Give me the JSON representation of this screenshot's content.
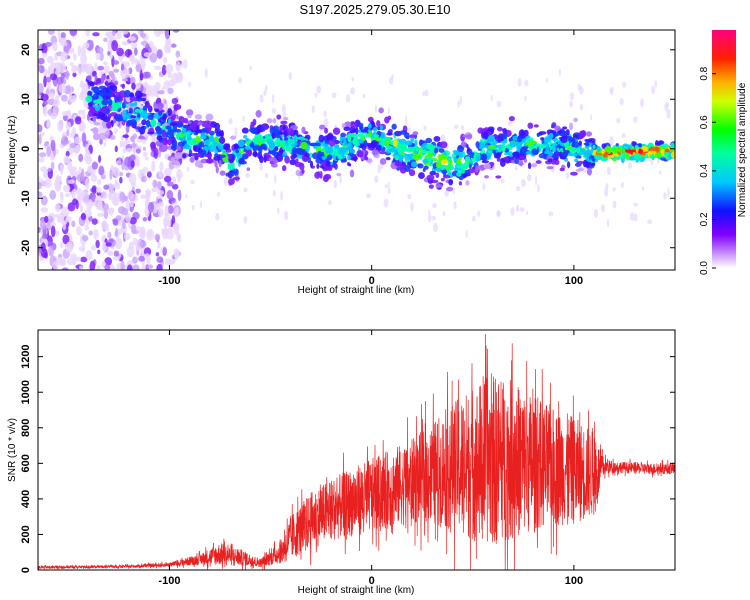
{
  "figure_title": "S197.2025.279.05.30.E10",
  "chart_data": [
    {
      "type": "heatmap",
      "xlabel": "Height of straight line (km)",
      "ylabel": "Frequency (Hz)",
      "xlim": [
        -165,
        150
      ],
      "ylim": [
        -24.5,
        24
      ],
      "xticks": [
        -100,
        0,
        100
      ],
      "xtick_labels": [
        "-100",
        "0",
        "100"
      ],
      "yticks": [
        -20,
        -10,
        0,
        10,
        20
      ],
      "ytick_labels": [
        "-20",
        "-10",
        "0",
        "10",
        "20"
      ],
      "colorbar": {
        "label": "Normalized spectral amplitude",
        "range": [
          0,
          0.98
        ],
        "ticks": [
          0.0,
          0.2,
          0.4,
          0.6,
          0.8
        ],
        "tick_labels": [
          "0.0",
          "0.2",
          "0.4",
          "0.6",
          "0.8"
        ],
        "colormap": [
          "#ffffff",
          "#a000ff",
          "#2000ff",
          "#00e0ff",
          "#00ff00",
          "#ffff00",
          "#ff8000",
          "#ff0000",
          "#ff0080"
        ]
      },
      "ridge": {
        "x": [
          -135,
          -120,
          -100,
          -90,
          -75,
          -70,
          -60,
          -40,
          -20,
          0,
          20,
          30,
          45,
          55,
          75,
          90,
          110,
          130,
          150
        ],
        "frequency": [
          10,
          8,
          4,
          2,
          1,
          -4,
          2,
          1,
          -1,
          3,
          -1,
          -2,
          -3,
          0,
          1,
          1,
          -1,
          -0.5,
          -0.5
        ]
      },
      "grid": false
    },
    {
      "type": "line",
      "xlabel": "Height of straight line (km)",
      "ylabel": "SNR (10 * v/v)",
      "xlim": [
        -165,
        150
      ],
      "ylim": [
        0,
        1350
      ],
      "xticks": [
        -100,
        0,
        100
      ],
      "xtick_labels": [
        "-100",
        "0",
        "100"
      ],
      "yticks": [
        0,
        200,
        400,
        600,
        800,
        1000,
        1200
      ],
      "ytick_labels": [
        "0",
        "200",
        "400",
        "600",
        "800",
        "1000",
        "1200"
      ],
      "color": "#e82020",
      "envelope": {
        "x": [
          -165,
          -120,
          -100,
          -85,
          -75,
          -65,
          -55,
          -45,
          -40,
          -30,
          -20,
          -10,
          0,
          10,
          20,
          30,
          40,
          50,
          60,
          70,
          80,
          90,
          100,
          110,
          115,
          120,
          135,
          150
        ],
        "median": [
          15,
          20,
          30,
          60,
          90,
          70,
          40,
          100,
          180,
          280,
          340,
          380,
          420,
          460,
          500,
          540,
          580,
          600,
          620,
          620,
          600,
          580,
          560,
          540,
          580,
          580,
          570,
          570
        ],
        "spread": [
          10,
          10,
          15,
          40,
          80,
          60,
          30,
          80,
          160,
          200,
          220,
          240,
          260,
          280,
          300,
          360,
          450,
          550,
          600,
          560,
          480,
          420,
          380,
          300,
          60,
          40,
          40,
          40
        ]
      },
      "grid": false
    }
  ]
}
